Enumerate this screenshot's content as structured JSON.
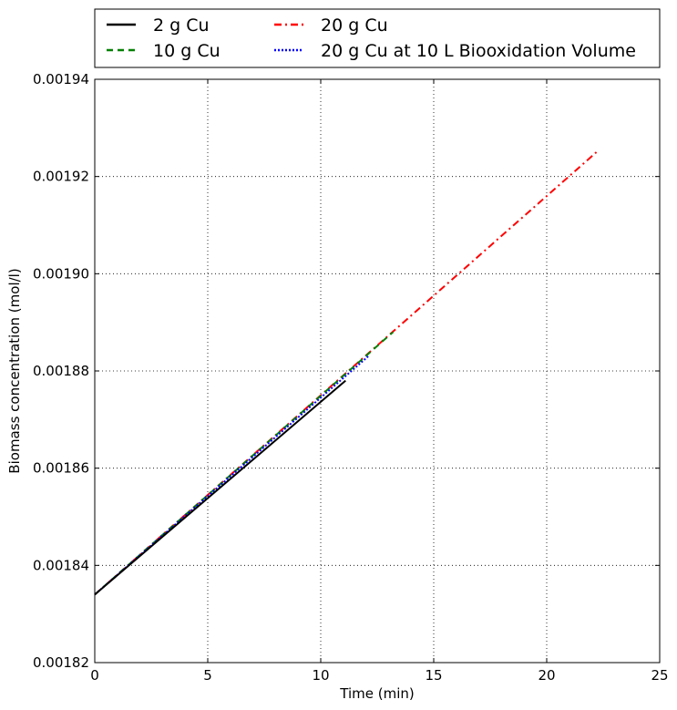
{
  "chart_data": {
    "type": "line",
    "xlabel": "Time (min)",
    "ylabel": "Biomass concentration (mol/l)",
    "xlim": [
      0,
      25
    ],
    "ylim": [
      0.00182,
      0.00194
    ],
    "x_ticks": [
      "0",
      "5",
      "10",
      "15",
      "20",
      "25"
    ],
    "y_ticks": [
      "0.00182",
      "0.00184",
      "0.00186",
      "0.00188",
      "0.00190",
      "0.00192",
      "0.00194"
    ],
    "grid": true,
    "legend_position": "top, above plot, 2 columns",
    "series": [
      {
        "name": "2 g Cu",
        "color": "#000000",
        "style": "solid",
        "x": [
          0,
          11.1
        ],
        "y": [
          0.001834,
          0.001878
        ]
      },
      {
        "name": "10 g Cu",
        "color": "#008000",
        "style": "dashed",
        "x": [
          0,
          13.2
        ],
        "y": [
          0.001834,
          0.001888
        ]
      },
      {
        "name": "20 g Cu",
        "color": "#ff0000",
        "style": "dashdot",
        "x": [
          0,
          22.2
        ],
        "y": [
          0.001834,
          0.001925
        ]
      },
      {
        "name": "20 g Cu at 10 L Biooxidation Volume",
        "color": "#0000ff",
        "style": "dotted",
        "x": [
          0,
          12.1
        ],
        "y": [
          0.001834,
          0.001883
        ]
      }
    ]
  }
}
